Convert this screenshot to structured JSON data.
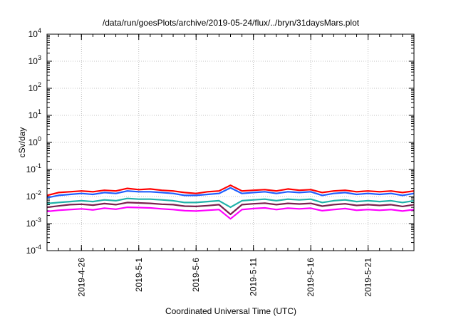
{
  "chart_data": {
    "type": "line",
    "title": "/data/run/goesPlots/archive/2019-05-24/flux/../bryn/31daysMars.plot",
    "xlabel": "Coordinated Universal Time (UTC)",
    "ylabel": "cSv/day",
    "yscale": "log",
    "ylim": [
      0.0001,
      10000
    ],
    "y_ticks": [
      {
        "value": 0.0001,
        "base": "10",
        "exp": "-4"
      },
      {
        "value": 0.001,
        "base": "10",
        "exp": "-3"
      },
      {
        "value": 0.01,
        "base": "10",
        "exp": "-2"
      },
      {
        "value": 0.1,
        "base": "10",
        "exp": "-1"
      },
      {
        "value": 1,
        "base": "10",
        "exp": "0"
      },
      {
        "value": 10,
        "base": "10",
        "exp": "1"
      },
      {
        "value": 100,
        "base": "10",
        "exp": "2"
      },
      {
        "value": 1000,
        "base": "10",
        "exp": "3"
      },
      {
        "value": 10000,
        "base": "10",
        "exp": "4"
      }
    ],
    "xlim": [
      "2019-04-23",
      "2019-05-25"
    ],
    "x_ticks": [
      "2019-4-26",
      "2019-5-1",
      "2019-5-6",
      "2019-5-11",
      "2019-5-16",
      "2019-5-21"
    ],
    "grid": true,
    "legend": "none",
    "series": [
      {
        "color": "#ff0000",
        "values": [
          [
            "2019-04-23",
            0.011
          ],
          [
            "2019-04-24",
            0.014
          ],
          [
            "2019-04-25",
            0.015
          ],
          [
            "2019-04-26",
            0.016
          ],
          [
            "2019-04-27",
            0.015
          ],
          [
            "2019-04-28",
            0.017
          ],
          [
            "2019-04-29",
            0.016
          ],
          [
            "2019-04-30",
            0.02
          ],
          [
            "2019-05-01",
            0.018
          ],
          [
            "2019-05-02",
            0.019
          ],
          [
            "2019-05-03",
            0.017
          ],
          [
            "2019-05-04",
            0.016
          ],
          [
            "2019-05-05",
            0.014
          ],
          [
            "2019-05-06",
            0.013
          ],
          [
            "2019-05-07",
            0.015
          ],
          [
            "2019-05-08",
            0.016
          ],
          [
            "2019-05-09",
            0.026
          ],
          [
            "2019-05-10",
            0.016
          ],
          [
            "2019-05-11",
            0.017
          ],
          [
            "2019-05-12",
            0.018
          ],
          [
            "2019-05-13",
            0.016
          ],
          [
            "2019-05-14",
            0.019
          ],
          [
            "2019-05-15",
            0.017
          ],
          [
            "2019-05-16",
            0.018
          ],
          [
            "2019-05-17",
            0.014
          ],
          [
            "2019-05-18",
            0.016
          ],
          [
            "2019-05-19",
            0.017
          ],
          [
            "2019-05-20",
            0.015
          ],
          [
            "2019-05-21",
            0.016
          ],
          [
            "2019-05-22",
            0.015
          ],
          [
            "2019-05-23",
            0.016
          ],
          [
            "2019-05-24",
            0.014
          ],
          [
            "2019-05-25",
            0.016
          ]
        ]
      },
      {
        "color": "#1f5fff",
        "values": [
          [
            "2019-04-23",
            0.009
          ],
          [
            "2019-04-24",
            0.011
          ],
          [
            "2019-04-25",
            0.012
          ],
          [
            "2019-04-26",
            0.013
          ],
          [
            "2019-04-27",
            0.012
          ],
          [
            "2019-04-28",
            0.014
          ],
          [
            "2019-04-29",
            0.013
          ],
          [
            "2019-04-30",
            0.016
          ],
          [
            "2019-05-01",
            0.015
          ],
          [
            "2019-05-02",
            0.015
          ],
          [
            "2019-05-03",
            0.014
          ],
          [
            "2019-05-04",
            0.013
          ],
          [
            "2019-05-05",
            0.011
          ],
          [
            "2019-05-06",
            0.011
          ],
          [
            "2019-05-07",
            0.012
          ],
          [
            "2019-05-08",
            0.013
          ],
          [
            "2019-05-09",
            0.021
          ],
          [
            "2019-05-10",
            0.013
          ],
          [
            "2019-05-11",
            0.014
          ],
          [
            "2019-05-12",
            0.015
          ],
          [
            "2019-05-13",
            0.013
          ],
          [
            "2019-05-14",
            0.015
          ],
          [
            "2019-05-15",
            0.014
          ],
          [
            "2019-05-16",
            0.015
          ],
          [
            "2019-05-17",
            0.011
          ],
          [
            "2019-05-18",
            0.013
          ],
          [
            "2019-05-19",
            0.014
          ],
          [
            "2019-05-20",
            0.012
          ],
          [
            "2019-05-21",
            0.013
          ],
          [
            "2019-05-22",
            0.012
          ],
          [
            "2019-05-23",
            0.013
          ],
          [
            "2019-05-24",
            0.011
          ],
          [
            "2019-05-25",
            0.013
          ]
        ]
      },
      {
        "color": "#20b2aa",
        "values": [
          [
            "2019-04-23",
            0.0055
          ],
          [
            "2019-04-24",
            0.006
          ],
          [
            "2019-04-25",
            0.0065
          ],
          [
            "2019-04-26",
            0.007
          ],
          [
            "2019-04-27",
            0.0065
          ],
          [
            "2019-04-28",
            0.0075
          ],
          [
            "2019-04-29",
            0.007
          ],
          [
            "2019-04-30",
            0.0085
          ],
          [
            "2019-05-01",
            0.008
          ],
          [
            "2019-05-02",
            0.008
          ],
          [
            "2019-05-03",
            0.0075
          ],
          [
            "2019-05-04",
            0.007
          ],
          [
            "2019-05-05",
            0.006
          ],
          [
            "2019-05-06",
            0.006
          ],
          [
            "2019-05-07",
            0.0065
          ],
          [
            "2019-05-08",
            0.007
          ],
          [
            "2019-05-09",
            0.004
          ],
          [
            "2019-05-10",
            0.007
          ],
          [
            "2019-05-11",
            0.0075
          ],
          [
            "2019-05-12",
            0.008
          ],
          [
            "2019-05-13",
            0.007
          ],
          [
            "2019-05-14",
            0.008
          ],
          [
            "2019-05-15",
            0.0075
          ],
          [
            "2019-05-16",
            0.008
          ],
          [
            "2019-05-17",
            0.006
          ],
          [
            "2019-05-18",
            0.007
          ],
          [
            "2019-05-19",
            0.0075
          ],
          [
            "2019-05-20",
            0.0065
          ],
          [
            "2019-05-21",
            0.007
          ],
          [
            "2019-05-22",
            0.0065
          ],
          [
            "2019-05-23",
            0.007
          ],
          [
            "2019-05-24",
            0.006
          ],
          [
            "2019-05-25",
            0.007
          ]
        ]
      },
      {
        "color": "#7a1f4f",
        "values": [
          [
            "2019-04-23",
            0.004
          ],
          [
            "2019-04-24",
            0.0045
          ],
          [
            "2019-04-25",
            0.005
          ],
          [
            "2019-04-26",
            0.0052
          ],
          [
            "2019-04-27",
            0.0048
          ],
          [
            "2019-04-28",
            0.0055
          ],
          [
            "2019-04-29",
            0.005
          ],
          [
            "2019-04-30",
            0.006
          ],
          [
            "2019-05-01",
            0.0058
          ],
          [
            "2019-05-02",
            0.0056
          ],
          [
            "2019-05-03",
            0.0052
          ],
          [
            "2019-05-04",
            0.005
          ],
          [
            "2019-05-05",
            0.0044
          ],
          [
            "2019-05-06",
            0.0043
          ],
          [
            "2019-05-07",
            0.0046
          ],
          [
            "2019-05-08",
            0.005
          ],
          [
            "2019-05-09",
            0.0022
          ],
          [
            "2019-05-10",
            0.005
          ],
          [
            "2019-05-11",
            0.0054
          ],
          [
            "2019-05-12",
            0.0057
          ],
          [
            "2019-05-13",
            0.005
          ],
          [
            "2019-05-14",
            0.0056
          ],
          [
            "2019-05-15",
            0.0053
          ],
          [
            "2019-05-16",
            0.0056
          ],
          [
            "2019-05-17",
            0.0044
          ],
          [
            "2019-05-18",
            0.005
          ],
          [
            "2019-05-19",
            0.0054
          ],
          [
            "2019-05-20",
            0.0047
          ],
          [
            "2019-05-21",
            0.005
          ],
          [
            "2019-05-22",
            0.0047
          ],
          [
            "2019-05-23",
            0.005
          ],
          [
            "2019-05-24",
            0.0043
          ],
          [
            "2019-05-25",
            0.005
          ]
        ]
      },
      {
        "color": "#ff00ff",
        "values": [
          [
            "2019-04-23",
            0.0028
          ],
          [
            "2019-04-24",
            0.0031
          ],
          [
            "2019-04-25",
            0.0033
          ],
          [
            "2019-04-26",
            0.0035
          ],
          [
            "2019-04-27",
            0.0032
          ],
          [
            "2019-04-28",
            0.0037
          ],
          [
            "2019-04-29",
            0.0034
          ],
          [
            "2019-04-30",
            0.004
          ],
          [
            "2019-05-01",
            0.0039
          ],
          [
            "2019-05-02",
            0.0038
          ],
          [
            "2019-05-03",
            0.0035
          ],
          [
            "2019-05-04",
            0.0033
          ],
          [
            "2019-05-05",
            0.003
          ],
          [
            "2019-05-06",
            0.0029
          ],
          [
            "2019-05-07",
            0.0031
          ],
          [
            "2019-05-08",
            0.0033
          ],
          [
            "2019-05-09",
            0.0015
          ],
          [
            "2019-05-10",
            0.0033
          ],
          [
            "2019-05-11",
            0.0036
          ],
          [
            "2019-05-12",
            0.0038
          ],
          [
            "2019-05-13",
            0.0033
          ],
          [
            "2019-05-14",
            0.0037
          ],
          [
            "2019-05-15",
            0.0035
          ],
          [
            "2019-05-16",
            0.0037
          ],
          [
            "2019-05-17",
            0.003
          ],
          [
            "2019-05-18",
            0.0033
          ],
          [
            "2019-05-19",
            0.0036
          ],
          [
            "2019-05-20",
            0.0031
          ],
          [
            "2019-05-21",
            0.0033
          ],
          [
            "2019-05-22",
            0.0031
          ],
          [
            "2019-05-23",
            0.0033
          ],
          [
            "2019-05-24",
            0.0029
          ],
          [
            "2019-05-25",
            0.0033
          ]
        ]
      }
    ]
  }
}
